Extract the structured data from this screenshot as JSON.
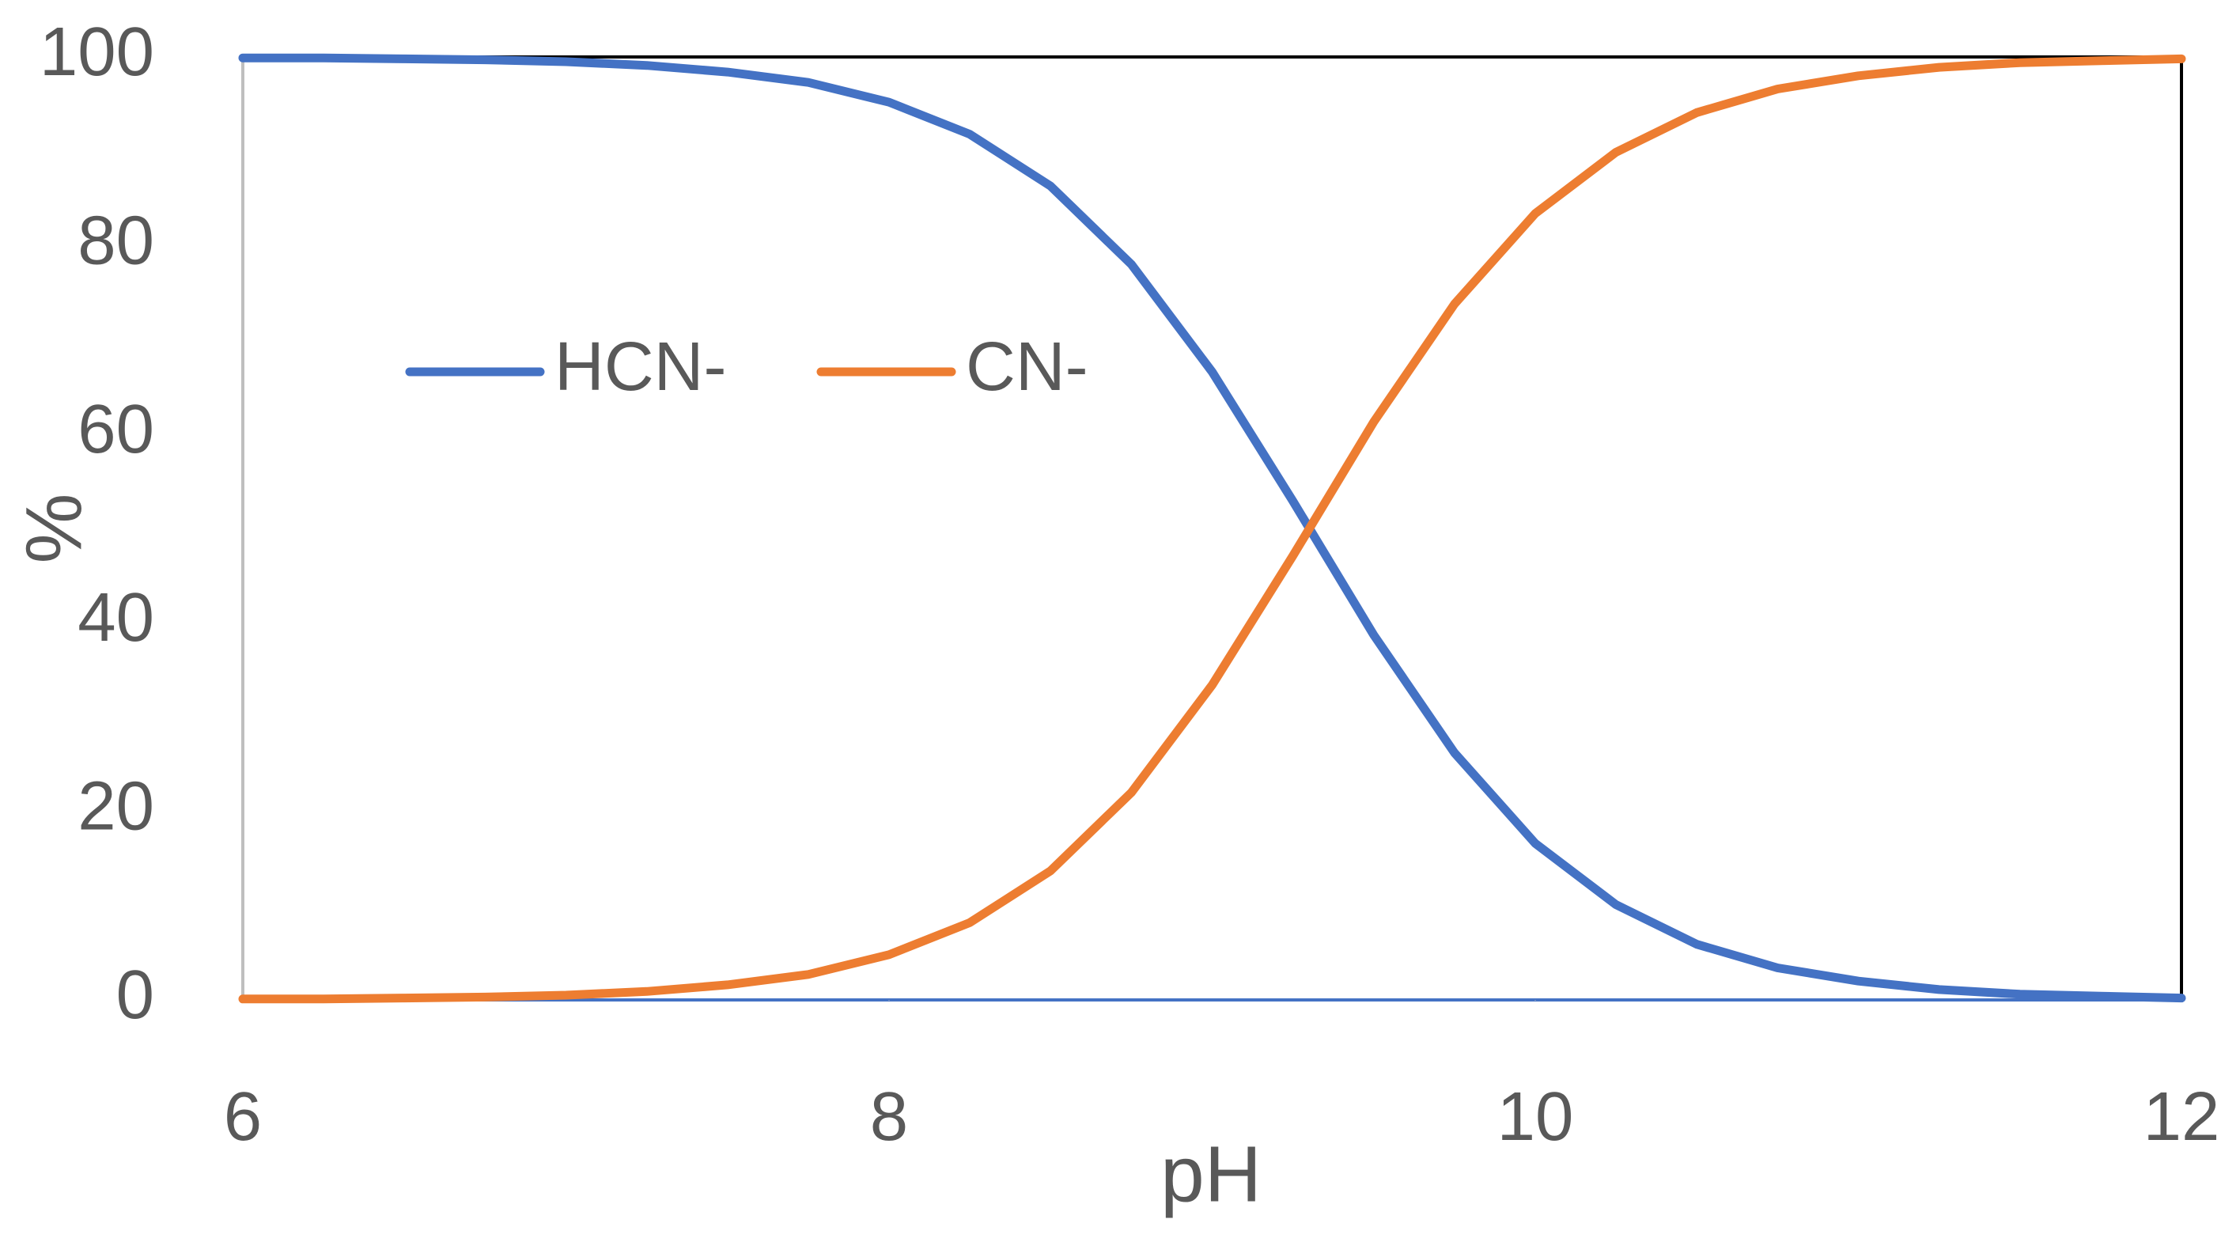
{
  "chart_data": {
    "type": "line",
    "x_label": "pH",
    "y_label": "%",
    "x": [
      6,
      6.25,
      6.5,
      6.75,
      7,
      7.25,
      7.5,
      7.75,
      8,
      8.25,
      8.5,
      8.75,
      9,
      9.25,
      9.5,
      9.75,
      10,
      10.25,
      10.5,
      10.75,
      11,
      11.25,
      11.5,
      11.75,
      12
    ],
    "series": [
      {
        "name": "HCN-",
        "color": "#4472c4",
        "values": [
          99.9,
          99.9,
          99.8,
          99.7,
          99.5,
          99.1,
          98.4,
          97.3,
          95.2,
          91.8,
          86.3,
          78.0,
          66.6,
          52.9,
          38.7,
          26.2,
          16.6,
          10.1,
          5.9,
          3.4,
          2.0,
          1.1,
          0.6,
          0.4,
          0.2
        ]
      },
      {
        "name": "CN-",
        "color": "#ed7d31",
        "values": [
          0.1,
          0.1,
          0.2,
          0.3,
          0.5,
          0.9,
          1.6,
          2.7,
          4.8,
          8.2,
          13.7,
          22.0,
          33.4,
          47.1,
          61.3,
          73.8,
          83.4,
          89.9,
          94.1,
          96.6,
          98.0,
          98.9,
          99.4,
          99.6,
          99.8
        ]
      }
    ],
    "xlim": [
      6,
      12
    ],
    "xticks": [
      6,
      8,
      10,
      12
    ],
    "ylim": [
      0,
      100
    ],
    "yticks": [
      0,
      20,
      40,
      60,
      80,
      100
    ],
    "grid": false,
    "legend": "top-left"
  }
}
